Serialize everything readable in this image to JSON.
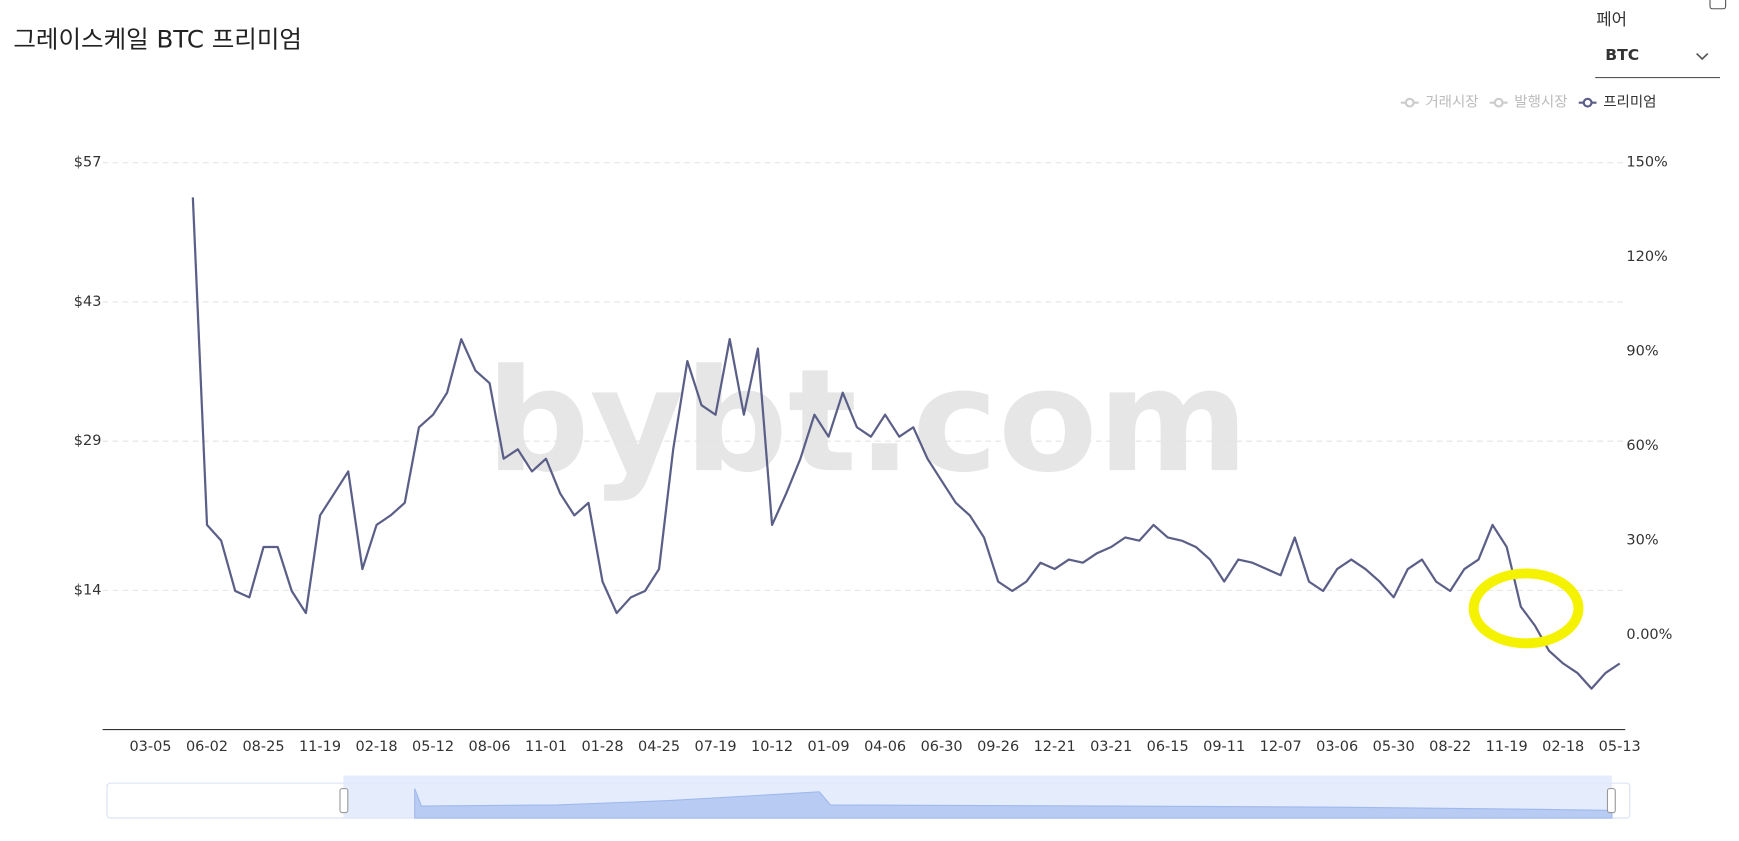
{
  "controls": {
    "pair_label": "페어",
    "pair_value": "BTC"
  },
  "chart_data": {
    "type": "line",
    "title": "그레이스케일 BTC 프리미엄",
    "watermark": "bybt.com",
    "categories": [
      "03-05",
      null,
      null,
      null,
      "06-02",
      null,
      null,
      null,
      "08-25",
      null,
      null,
      null,
      "11-19",
      null,
      null,
      null,
      "02-18",
      null,
      null,
      null,
      "05-12",
      null,
      null,
      null,
      "08-06",
      null,
      null,
      null,
      "11-01",
      null,
      null,
      null,
      "01-28",
      null,
      null,
      null,
      "04-25",
      null,
      null,
      null,
      "07-19",
      null,
      null,
      null,
      "10-12",
      null,
      null,
      null,
      "01-09",
      null,
      null,
      null,
      "04-06",
      null,
      null,
      null,
      "06-30",
      null,
      null,
      null,
      "09-26",
      null,
      null,
      null,
      "12-21",
      null,
      null,
      null,
      "03-21",
      null,
      null,
      null,
      "06-15",
      null,
      null,
      null,
      "09-11",
      null,
      null,
      null,
      "12-07",
      null,
      null,
      null,
      "03-06",
      null,
      null,
      null,
      "05-30",
      null,
      null,
      null,
      "08-22",
      null,
      null,
      null,
      "11-19",
      null,
      null,
      null,
      "02-18",
      null,
      null,
      null,
      "05-13"
    ],
    "series": [
      {
        "name": "거래시장",
        "visible": false
      },
      {
        "name": "발행시장",
        "visible": false
      },
      {
        "name": "프리미엄",
        "color": "#5b5f87",
        "axis": "y2",
        "visible": true,
        "values": [
          null,
          null,
          null,
          139,
          35,
          30,
          14,
          12,
          28,
          28,
          14,
          7,
          38,
          45,
          52,
          21,
          35,
          38,
          42,
          66,
          70,
          77,
          94,
          84,
          80,
          56,
          59,
          52,
          56,
          45,
          38,
          42,
          17,
          7,
          12,
          14,
          21,
          59,
          87,
          73,
          70,
          94,
          70,
          91,
          35,
          45,
          56,
          70,
          63,
          77,
          66,
          63,
          70,
          63,
          66,
          56,
          49,
          42,
          38,
          31,
          17,
          14,
          17,
          23,
          21,
          24,
          23,
          26,
          28,
          31,
          30,
          35,
          31,
          30,
          28,
          24,
          17,
          24,
          23,
          21,
          19,
          31,
          17,
          14,
          21,
          24,
          21,
          17,
          12,
          21,
          24,
          17,
          14,
          21,
          24,
          35,
          28,
          9,
          3,
          -5,
          -9,
          -12,
          -17,
          -12,
          -9
        ]
      }
    ],
    "ylim": [
      0,
      57
    ],
    "yticks": [
      {
        "value": 57,
        "label": "$57"
      },
      {
        "value": 43,
        "label": "$43"
      },
      {
        "value": 29,
        "label": "$29"
      },
      {
        "value": 14,
        "label": "$14"
      }
    ],
    "y2lim": [
      -30,
      150
    ],
    "y2ticks": [
      {
        "value": 150,
        "label": "150%"
      },
      {
        "value": 120,
        "label": "120%"
      },
      {
        "value": 90,
        "label": "90%"
      },
      {
        "value": 60,
        "label": "60%"
      },
      {
        "value": 30,
        "label": "30%"
      },
      {
        "value": 0,
        "label": "0.00%"
      }
    ],
    "grid": true,
    "legend": "top-right"
  }
}
